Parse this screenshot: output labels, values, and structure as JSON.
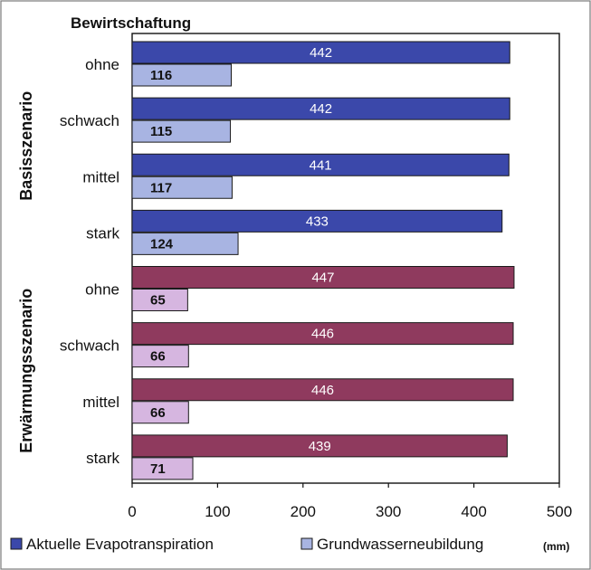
{
  "chart_data": {
    "type": "bar",
    "orientation": "horizontal",
    "title": "Bewirtschaftung",
    "unit": "(mm)",
    "xlim": [
      0,
      500
    ],
    "x_ticks": [
      0,
      100,
      200,
      300,
      400,
      500
    ],
    "categories": [
      "ohne",
      "schwach",
      "mittel",
      "stark",
      "ohne",
      "schwach",
      "mittel",
      "stark"
    ],
    "groups": [
      {
        "label": "Basisszenario",
        "category_indices": [
          0,
          1,
          2,
          3
        ]
      },
      {
        "label": "Erwärmungsszenario",
        "category_indices": [
          4,
          5,
          6,
          7
        ]
      }
    ],
    "series": [
      {
        "name": "Aktuelle Evapotranspiration",
        "values": [
          442,
          442,
          441,
          433,
          447,
          446,
          446,
          439
        ],
        "colors": [
          "#3B48AA",
          "#3B48AA",
          "#3B48AA",
          "#3B48AA",
          "#8F3A5E",
          "#8F3A5E",
          "#8F3A5E",
          "#8F3A5E"
        ]
      },
      {
        "name": "Grundwasserneubildung",
        "values": [
          116,
          115,
          117,
          124,
          65,
          66,
          66,
          71
        ],
        "colors": [
          "#A8B4E2",
          "#A8B4E2",
          "#A8B4E2",
          "#A8B4E2",
          "#D6B6E0",
          "#D6B6E0",
          "#D6B6E0",
          "#D6B6E0"
        ]
      }
    ],
    "legend": {
      "position": "bottom-left",
      "colors": [
        "#3B48AA",
        "#A8B4E2"
      ]
    }
  }
}
